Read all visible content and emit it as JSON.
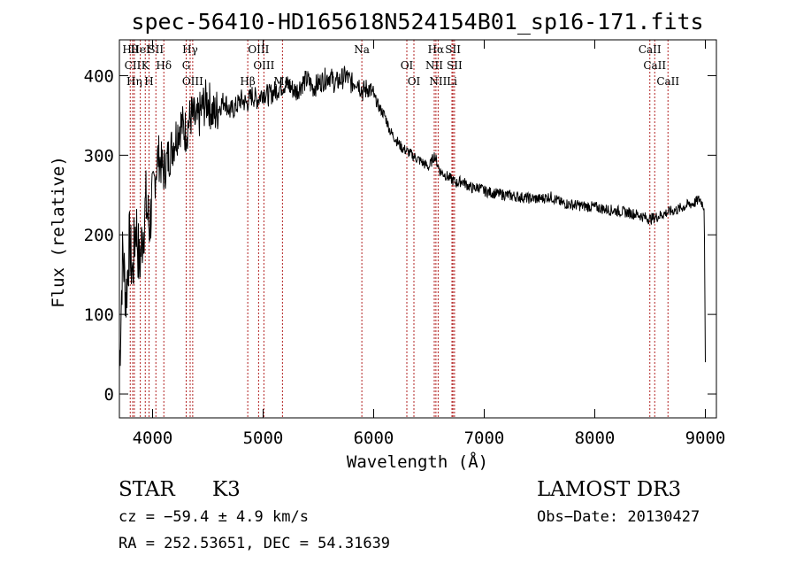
{
  "chart_data": {
    "type": "line",
    "title": "spec-56410-HD165618N524154B01_sp16-171.fits",
    "xlabel": "Wavelength (Å)",
    "ylabel": "Flux (relative)",
    "xlim": [
      3700,
      9100
    ],
    "ylim": [
      -30,
      445
    ],
    "x_ticks": [
      4000,
      5000,
      6000,
      7000,
      8000,
      9000
    ],
    "y_ticks": [
      0,
      100,
      200,
      300,
      400
    ],
    "grid": false,
    "series": [
      {
        "x": [
          3700,
          3730,
          3760,
          3790,
          3820,
          3850,
          3880,
          3910,
          3940,
          3970,
          4000,
          4050,
          4100,
          4150,
          4200,
          4250,
          4300,
          4350,
          4400,
          4450,
          4500,
          4550,
          4600,
          4650,
          4700,
          4750,
          4800,
          4850,
          4900,
          4950,
          5000,
          5050,
          5100,
          5150,
          5200,
          5250,
          5300,
          5350,
          5400,
          5450,
          5500,
          5550,
          5600,
          5650,
          5700,
          5750,
          5800,
          5850,
          5900,
          5950,
          6000,
          6050,
          6100,
          6150,
          6200,
          6250,
          6300,
          6350,
          6400,
          6450,
          6500,
          6550,
          6600,
          6650,
          6700,
          6750,
          6800,
          6850,
          6900,
          6950,
          7000,
          7100,
          7200,
          7300,
          7400,
          7500,
          7600,
          7700,
          7800,
          7900,
          8000,
          8100,
          8200,
          8300,
          8400,
          8450,
          8500,
          8550,
          8600,
          8650,
          8700,
          8750,
          8800,
          8850,
          8900,
          8950,
          8990,
          9000
        ],
        "y": [
          30,
          180,
          120,
          190,
          150,
          220,
          160,
          200,
          240,
          210,
          250,
          300,
          280,
          300,
          320,
          340,
          330,
          350,
          340,
          360,
          370,
          350,
          360,
          370,
          355,
          360,
          370,
          365,
          375,
          370,
          380,
          375,
          380,
          385,
          390,
          385,
          380,
          390,
          395,
          385,
          390,
          395,
          400,
          390,
          395,
          400,
          390,
          395,
          380,
          385,
          375,
          360,
          350,
          330,
          320,
          310,
          305,
          300,
          295,
          290,
          285,
          300,
          280,
          275,
          270,
          265,
          268,
          262,
          258,
          260,
          255,
          252,
          250,
          248,
          246,
          245,
          248,
          240,
          238,
          236,
          235,
          232,
          230,
          228,
          225,
          222,
          220,
          222,
          225,
          228,
          230,
          232,
          235,
          238,
          240,
          245,
          235,
          40
        ]
      }
    ],
    "spectral_lines": [
      {
        "label": "Hθ",
        "x": 3798
      },
      {
        "label": "CII",
        "x": 3820
      },
      {
        "label": "Hη",
        "x": 3835
      },
      {
        "label": "HeI",
        "x": 3889
      },
      {
        "label": "K",
        "x": 3934
      },
      {
        "label": "H",
        "x": 3968
      },
      {
        "label": "SII",
        "x": 4030
      },
      {
        "label": "Hδ",
        "x": 4102
      },
      {
        "label": "OIII",
        "x": 4363
      },
      {
        "label": "Hγ",
        "x": 4340
      },
      {
        "label": "G",
        "x": 4304
      },
      {
        "label": "Hβ",
        "x": 4861
      },
      {
        "label": "OIII",
        "x": 4959
      },
      {
        "label": "OIII",
        "x": 5007
      },
      {
        "label": "Mg",
        "x": 5175
      },
      {
        "label": "Na",
        "x": 5893
      },
      {
        "label": "OI",
        "x": 6300
      },
      {
        "label": "OI",
        "x": 6364
      },
      {
        "label": "Hα",
        "x": 6563
      },
      {
        "label": "NII",
        "x": 6548
      },
      {
        "label": "NII",
        "x": 6583
      },
      {
        "label": "SII",
        "x": 6717
      },
      {
        "label": "SII",
        "x": 6731
      },
      {
        "label": "Li",
        "x": 6708
      },
      {
        "label": "CaII",
        "x": 8498
      },
      {
        "label": "CaII",
        "x": 8542
      },
      {
        "label": "CaII",
        "x": 8662
      }
    ]
  },
  "info": {
    "class": "STAR",
    "subclass": "K3",
    "survey": "LAMOST DR3",
    "cz": "cz = −59.4 ± 4.9 km/s",
    "obs_date": "Obs−Date: 20130427",
    "coords": "RA = 252.53651, DEC =  54.31639"
  },
  "colors": {
    "spectrum": "#000000",
    "line_markers": "#b22222"
  }
}
